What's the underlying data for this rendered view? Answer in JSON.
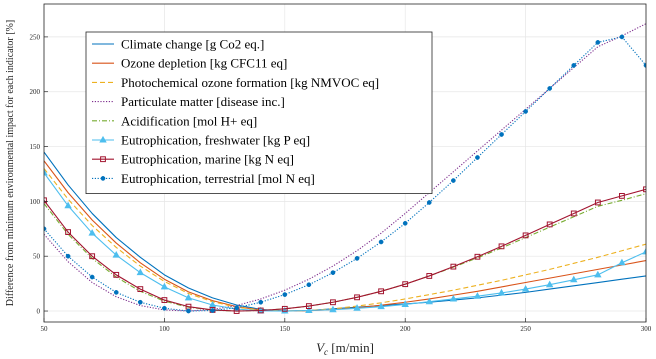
{
  "chart_data": {
    "type": "line",
    "xlabel": "V_c [m/min]",
    "xlabel_main": "V",
    "xlabel_sub": "c",
    "xlabel_rest": " [m/min]",
    "ylabel": "Difference from minimum environmental impact for each indicator [%]",
    "xlim": [
      50,
      300
    ],
    "ylim": [
      -10,
      280
    ],
    "xticks": [
      50,
      100,
      150,
      200,
      250,
      300
    ],
    "yticks": [
      0,
      50,
      100,
      150,
      200,
      250
    ],
    "grid": true,
    "legend_position": "top-left",
    "x": [
      50,
      60,
      70,
      80,
      90,
      100,
      110,
      120,
      130,
      140,
      150,
      160,
      170,
      180,
      190,
      200,
      210,
      220,
      230,
      240,
      250,
      260,
      270,
      280,
      290,
      300
    ],
    "series": [
      {
        "name": "Climate change [g Co2 eq.]",
        "color": "#0072BD",
        "style": "solid",
        "marker": "none",
        "values": [
          145,
          115,
          89,
          67,
          49,
          33,
          21,
          12,
          5.5,
          1.5,
          0,
          0.5,
          2,
          3.5,
          5,
          6.5,
          8,
          10,
          12,
          14.5,
          17,
          20,
          23,
          26,
          29,
          32
        ]
      },
      {
        "name": "Ozone depletion [kg CFC11 eq]",
        "color": "#D95319",
        "style": "solid",
        "marker": "none",
        "values": [
          137,
          108,
          83,
          62,
          44,
          29,
          17.5,
          9.5,
          4,
          1,
          0,
          0.3,
          1.3,
          3,
          5.3,
          8,
          11,
          14.5,
          18,
          22,
          26,
          30,
          34,
          38,
          42,
          46
        ]
      },
      {
        "name": "Photochemical ozone formation [kg NMVOC eq]",
        "color": "#EDB120",
        "style": "dashed",
        "marker": "none",
        "values": [
          130,
          102,
          78,
          58,
          41,
          27,
          16,
          8.5,
          3.5,
          0.8,
          0,
          0.5,
          2,
          4.5,
          7.5,
          11,
          15,
          19,
          23.5,
          28,
          33,
          38,
          43.5,
          49,
          55,
          61
        ]
      },
      {
        "name": "Particulate matter [disease inc.]",
        "color": "#7E2F8E",
        "style": "dotted",
        "marker": "none",
        "values": [
          70,
          45,
          26,
          13,
          5,
          1,
          0,
          1.5,
          5,
          11,
          19,
          29,
          41,
          55,
          71,
          89,
          108,
          127,
          146,
          165,
          184,
          203,
          222,
          241,
          251,
          262
        ]
      },
      {
        "name": "Acidification [mol H+ eq]",
        "color": "#77AC30",
        "style": "dashdot",
        "marker": "none",
        "values": [
          98,
          70,
          48,
          31,
          18,
          9,
          3.5,
          0.8,
          0,
          0.5,
          2,
          4.5,
          8,
          12.5,
          18,
          24.5,
          32,
          40,
          48.5,
          57.5,
          67,
          76.5,
          86,
          95.5,
          101,
          107
        ]
      },
      {
        "name": "Eutrophication, freshwater [kg P eq]",
        "color": "#4DBEEE",
        "style": "solid",
        "marker": "triangle",
        "values": [
          126,
          96,
          71,
          51,
          35,
          22,
          12,
          5.5,
          1.8,
          0.2,
          0,
          0.5,
          1.2,
          2.5,
          4,
          6,
          8.5,
          11,
          13.5,
          16.5,
          20,
          24,
          28.5,
          33,
          44,
          54
        ]
      },
      {
        "name": "Eutrophication, marine [kg N eq]",
        "color": "#A2142F",
        "style": "solid",
        "marker": "square",
        "values": [
          101,
          72,
          50,
          33,
          20,
          10,
          4,
          1,
          0,
          0.5,
          2,
          4.5,
          8,
          12.5,
          18,
          24.5,
          32,
          40.5,
          49.5,
          59,
          69,
          79,
          89,
          99,
          105,
          111
        ]
      },
      {
        "name": "Eutrophication, terrestrial [mol N eq]",
        "color": "#0072BD",
        "style": "dotted",
        "marker": "circle",
        "values": [
          75,
          50,
          31,
          17,
          8,
          2.5,
          0,
          0.5,
          3,
          8,
          15,
          24,
          35,
          48,
          63,
          80,
          99,
          119,
          140,
          161,
          182,
          203,
          224,
          245,
          250,
          224
        ]
      }
    ]
  }
}
